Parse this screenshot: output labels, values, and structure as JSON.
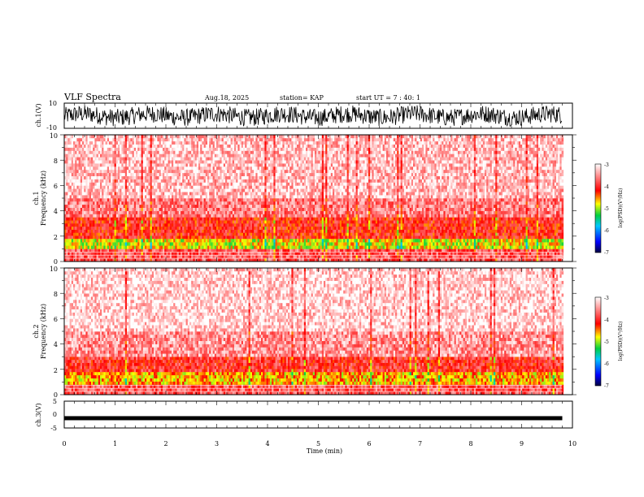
{
  "header": {
    "title": "VLF Spectra",
    "date": "Aug.18, 2025",
    "station": "station= KAP",
    "start": "start  UT =   7 : 40: 1"
  },
  "chart_data": [
    {
      "type": "line",
      "id": "ch1-waveform",
      "ylabel": "ch.1(V)",
      "ylim": [
        -10,
        10
      ],
      "yticks": [
        "10",
        "-10"
      ],
      "xlim": [
        0,
        10
      ],
      "description_values": {
        "data_extent_min": 9.8
      }
    },
    {
      "type": "heatmap",
      "id": "ch1-spectrogram",
      "ylabel_top": "ch.1",
      "ylabel": "Frequency (kHz)",
      "ylim": [
        0,
        10
      ],
      "yticks": [
        "0",
        "2",
        "4",
        "6",
        "8",
        "10"
      ],
      "xlim": [
        0,
        10
      ],
      "data_extent_min": 9.8,
      "bands": [
        {
          "from_khz": 0.0,
          "to_khz": 1.0,
          "level": -3.8
        },
        {
          "from_khz": 1.0,
          "to_khz": 1.8,
          "level": -4.8
        },
        {
          "from_khz": 1.8,
          "to_khz": 3.5,
          "level": -4.1
        },
        {
          "from_khz": 3.5,
          "to_khz": 5.0,
          "level": -3.6
        },
        {
          "from_khz": 5.0,
          "to_khz": 10.0,
          "level": -3.3
        }
      ],
      "colorbar": {
        "label": "log(PSD)(V²/Hz)",
        "range": [
          -7,
          -3
        ],
        "ticks": [
          "-3",
          "-4",
          "-5",
          "-6",
          "-7"
        ]
      }
    },
    {
      "type": "heatmap",
      "id": "ch2-spectrogram",
      "ylabel_top": "ch.2",
      "ylabel": "Frequency (kHz)",
      "ylim": [
        0,
        10
      ],
      "yticks": [
        "0",
        "2",
        "4",
        "6",
        "8",
        "10"
      ],
      "xlim": [
        0,
        10
      ],
      "data_extent_min": 9.8,
      "bands": [
        {
          "from_khz": 0.0,
          "to_khz": 0.8,
          "level": -3.8
        },
        {
          "from_khz": 0.8,
          "to_khz": 1.8,
          "level": -4.6
        },
        {
          "from_khz": 1.8,
          "to_khz": 3.0,
          "level": -4.0
        },
        {
          "from_khz": 3.0,
          "to_khz": 5.0,
          "level": -3.5
        },
        {
          "from_khz": 5.0,
          "to_khz": 10.0,
          "level": -3.2
        }
      ],
      "colorbar": {
        "label": "log(PSD)(V²/Hz)",
        "range": [
          -7,
          -3
        ],
        "ticks": [
          "-3",
          "-4",
          "-5",
          "-6",
          "-7"
        ]
      }
    },
    {
      "type": "line",
      "id": "ch3-waveform",
      "ylabel": "ch.3(V)",
      "ylim": [
        -5,
        5
      ],
      "yticks": [
        "5",
        "0",
        "-5"
      ],
      "xlim": [
        0,
        10
      ],
      "baseline_value": -1.5,
      "data_extent_min": 9.8
    }
  ],
  "xaxis": {
    "label": "Time (min)",
    "ticks": [
      "0",
      "1",
      "2",
      "3",
      "4",
      "5",
      "6",
      "7",
      "8",
      "9",
      "10"
    ]
  }
}
